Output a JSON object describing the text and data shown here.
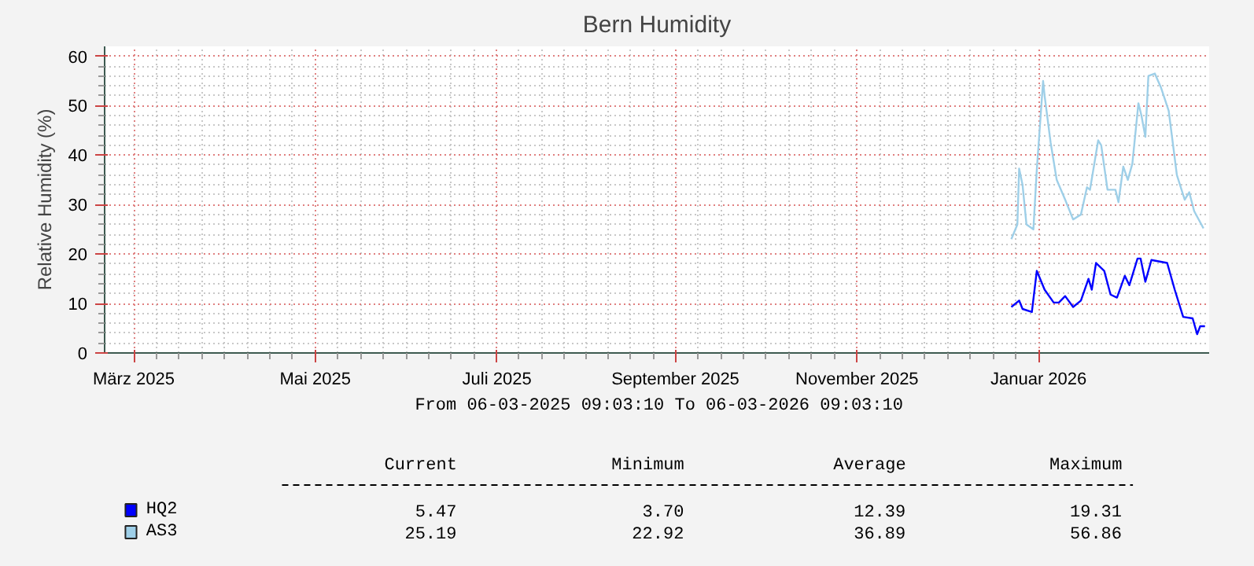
{
  "chart_data": {
    "type": "line",
    "title": "Bern Humidity",
    "ylabel": "Relative Humidity (%)",
    "xlim": [
      "2025-03-06T09:03",
      "2026-03-06T09:03"
    ],
    "ylim": [
      0,
      62
    ],
    "yticks": [
      0,
      10,
      20,
      30,
      40,
      50,
      60
    ],
    "xticks": [
      {
        "value": "2025-03-16",
        "label": "März 2025"
      },
      {
        "value": "2025-05-15",
        "label": "Mai 2025"
      },
      {
        "value": "2025-07-14",
        "label": "Juli 2025"
      },
      {
        "value": "2025-09-11",
        "label": "September 2025"
      },
      {
        "value": "2025-11-10",
        "label": "November 2025"
      },
      {
        "value": "2026-01-09",
        "label": "Januar 2026"
      }
    ],
    "grid": true,
    "legend": "bottom left",
    "series": [
      {
        "name": "HQ2",
        "color": "#0000ff",
        "x": [
          "2025-12-31",
          "2026-01-02T14:00",
          "2026-01-03T17:00",
          "2026-01-06T19:00",
          "2026-01-08T10:00",
          "2026-01-11",
          "2026-01-14",
          "2026-01-15T17:00",
          "2026-01-17T19:00",
          "2026-01-20T10:00",
          "2026-01-23",
          "2026-01-25T12:00",
          "2026-01-26T14:00",
          "2026-01-28",
          "2026-01-30T17:00",
          "2026-02-01T19:00",
          "2026-02-03T22:00",
          "2026-02-06T12:00",
          "2026-02-08",
          "2026-02-10T17:00",
          "2026-02-11T17:00",
          "2026-02-13T07:00",
          "2026-02-15T07:00",
          "2026-02-20T12:00",
          "2026-02-23",
          "2026-02-25T19:00",
          "2026-02-28T22:00",
          "2026-03-02T10:00",
          "2026-03-03T10:00",
          "2026-03-05"
        ],
        "values": [
          9.3,
          10.6,
          8.9,
          8.3,
          16.6,
          12.8,
          10.2,
          10.2,
          11.5,
          9.3,
          10.6,
          15,
          12.8,
          18.2,
          16.6,
          11.8,
          11.2,
          15.6,
          13.7,
          19.1,
          19.1,
          14.4,
          18.8,
          18.2,
          12.8,
          7.3,
          7.0,
          3.8,
          5.4,
          5.4
        ]
      },
      {
        "name": "AS3",
        "color": "#9ecfe8",
        "x": [
          "2025-12-31",
          "2026-01-02",
          "2026-01-02T14:00",
          "2026-01-03T17:00",
          "2026-01-05",
          "2026-01-07T07:00",
          "2026-01-08T10:00",
          "2026-01-10T12:00",
          "2026-01-11",
          "2026-01-13",
          "2026-01-15",
          "2026-01-17T19:00",
          "2026-01-20T10:00",
          "2026-01-23",
          "2026-01-25",
          "2026-01-26",
          "2026-01-28T17:00",
          "2026-01-29T17:00",
          "2026-01-31T19:00",
          "2026-02-03T10:00",
          "2026-02-04T10:00",
          "2026-02-06",
          "2026-02-07T12:00",
          "2026-02-09",
          "2026-02-11",
          "2026-02-12",
          "2026-02-13T07:00",
          "2026-02-14T07:00",
          "2026-02-16T10:00",
          "2026-02-18T12:00",
          "2026-02-21",
          "2026-02-23T17:00",
          "2026-02-26T07:00",
          "2026-02-27T19:00",
          "2026-03-01T10:00",
          "2026-03-04T12:00"
        ],
        "values": [
          23.0,
          26,
          37.3,
          34,
          26,
          25,
          37,
          55,
          52,
          42.5,
          35,
          31,
          27,
          28,
          33.5,
          33,
          43,
          42,
          33,
          33,
          30.5,
          37.7,
          35,
          38.3,
          50.5,
          48,
          43.7,
          56,
          56.5,
          53.6,
          49,
          36,
          31,
          32.5,
          28.7,
          25.2
        ]
      }
    ],
    "annotations": [
      "From 06-03-2025 09:03:10 To 06-03-2026 09:03:10",
      "Current",
      "Minimum",
      "Average",
      "Maximum",
      "5.47",
      "3.70",
      "12.39",
      "19.31",
      "25.19",
      "22.92",
      "36.89",
      "56.86"
    ]
  }
}
